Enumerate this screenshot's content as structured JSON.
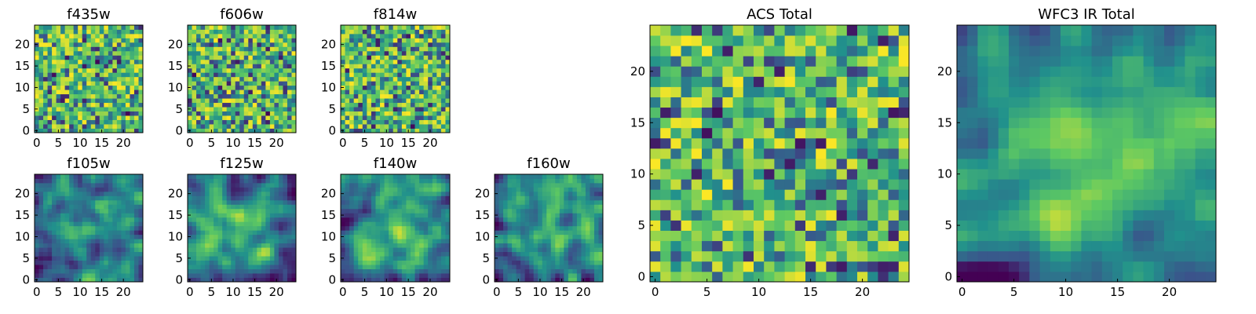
{
  "chart_data": [
    {
      "type": "heatmap",
      "title": "f435w",
      "grid_size": 25,
      "xticks": [
        0,
        5,
        10,
        15,
        20
      ],
      "yticks": [
        0,
        5,
        10,
        15,
        20
      ],
      "pattern": "noise",
      "seed": 11
    },
    {
      "type": "heatmap",
      "title": "f606w",
      "grid_size": 25,
      "xticks": [
        0,
        5,
        10,
        15,
        20
      ],
      "yticks": [
        0,
        5,
        10,
        15,
        20
      ],
      "pattern": "noise",
      "seed": 23
    },
    {
      "type": "heatmap",
      "title": "f814w",
      "grid_size": 25,
      "xticks": [
        0,
        5,
        10,
        15,
        20
      ],
      "yticks": [
        0,
        5,
        10,
        15,
        20
      ],
      "pattern": "noise",
      "seed": 37
    },
    {
      "type": "heatmap",
      "title": "f105w",
      "grid_size": 25,
      "xticks": [
        0,
        5,
        10,
        15,
        20
      ],
      "yticks": [
        0,
        5,
        10,
        15,
        20
      ],
      "pattern": "smooth",
      "seed": 41
    },
    {
      "type": "heatmap",
      "title": "f125w",
      "grid_size": 25,
      "xticks": [
        0,
        5,
        10,
        15,
        20
      ],
      "yticks": [
        0,
        5,
        10,
        15,
        20
      ],
      "pattern": "smooth",
      "seed": 53
    },
    {
      "type": "heatmap",
      "title": "f140w",
      "grid_size": 25,
      "xticks": [
        0,
        5,
        10,
        15,
        20
      ],
      "yticks": [
        0,
        5,
        10,
        15,
        20
      ],
      "pattern": "smooth",
      "seed": 67
    },
    {
      "type": "heatmap",
      "title": "f160w",
      "grid_size": 25,
      "xticks": [
        0,
        5,
        10,
        15,
        20
      ],
      "yticks": [
        0,
        5,
        10,
        15,
        20
      ],
      "pattern": "smooth",
      "seed": 79
    },
    {
      "type": "heatmap",
      "title": "ACS Total",
      "grid_size": 25,
      "xticks": [
        0,
        5,
        10,
        15,
        20
      ],
      "yticks": [
        0,
        5,
        10,
        15,
        20
      ],
      "pattern": "noise",
      "seed": 83
    },
    {
      "type": "heatmap",
      "title": "WFC3 IR Total",
      "grid_size": 25,
      "xticks": [
        0,
        5,
        10,
        15,
        20
      ],
      "yticks": [
        0,
        5,
        10,
        15,
        20
      ],
      "pattern": "smooth",
      "seed": 97
    }
  ],
  "colormap": [
    "#440154",
    "#3b528b",
    "#21918c",
    "#5ec962",
    "#fde725"
  ]
}
